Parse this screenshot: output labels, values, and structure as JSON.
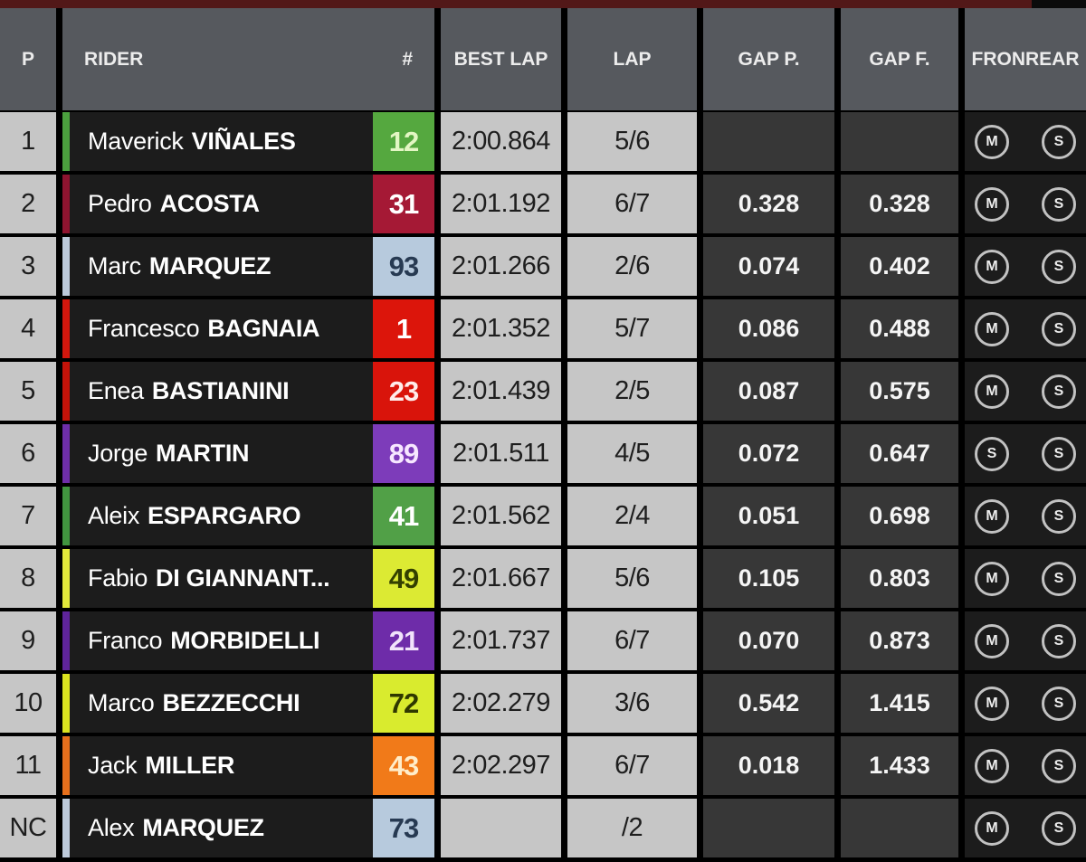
{
  "header": {
    "p": "P",
    "rider": "RIDER",
    "number": "#",
    "best_lap": "BEST LAP",
    "lap": "LAP",
    "gap_p": "GAP P.",
    "gap_f": "GAP F.",
    "tires": "FRONREAR"
  },
  "colors": {
    "top_bar": "#521818",
    "header_bg": "#56595e",
    "light_cell": "#c6c6c6",
    "dark_cell": "#373737",
    "black_cell": "#1c1c1c",
    "tire_outline": "#c2c2c2"
  },
  "rows": [
    {
      "pos": "1",
      "first": "Maverick",
      "last": "VIÑALES",
      "number": "12",
      "stripe": "#4ba03e",
      "number_bg": "#55a83f",
      "number_color": "#e3f6c3",
      "best_lap": "2:00.864",
      "lap": "5/6",
      "gap_p": "",
      "gap_f": "",
      "front_tire": "M",
      "rear_tire": "S"
    },
    {
      "pos": "2",
      "first": "Pedro",
      "last": "ACOSTA",
      "number": "31",
      "stripe": "#8e1430",
      "number_bg": "#a51935",
      "number_color": "#ffffff",
      "best_lap": "2:01.192",
      "lap": "6/7",
      "gap_p": "0.328",
      "gap_f": "0.328",
      "front_tire": "M",
      "rear_tire": "S"
    },
    {
      "pos": "3",
      "first": "Marc",
      "last": "MARQUEZ",
      "number": "93",
      "stripe": "#bcc9da",
      "number_bg": "#b7cadd",
      "number_color": "#273a52",
      "best_lap": "2:01.266",
      "lap": "2/6",
      "gap_p": "0.074",
      "gap_f": "0.402",
      "front_tire": "M",
      "rear_tire": "S"
    },
    {
      "pos": "4",
      "first": "Francesco",
      "last": "BAGNAIA",
      "number": "1",
      "stripe": "#d2170d",
      "number_bg": "#dc150b",
      "number_color": "#ffffff",
      "best_lap": "2:01.352",
      "lap": "5/7",
      "gap_p": "0.086",
      "gap_f": "0.488",
      "front_tire": "M",
      "rear_tire": "S"
    },
    {
      "pos": "5",
      "first": "Enea",
      "last": "BASTIANINI",
      "number": "23",
      "stripe": "#c41309",
      "number_bg": "#d9140b",
      "number_color": "#ffeceb",
      "best_lap": "2:01.439",
      "lap": "2/5",
      "gap_p": "0.087",
      "gap_f": "0.575",
      "front_tire": "M",
      "rear_tire": "S"
    },
    {
      "pos": "6",
      "first": "Jorge",
      "last": "MARTIN",
      "number": "89",
      "stripe": "#6e2ea8",
      "number_bg": "#7d3cba",
      "number_color": "#f7e7ff",
      "best_lap": "2:01.511",
      "lap": "4/5",
      "gap_p": "0.072",
      "gap_f": "0.647",
      "front_tire": "S",
      "rear_tire": "S"
    },
    {
      "pos": "7",
      "first": "Aleix",
      "last": "ESPARGARO",
      "number": "41",
      "stripe": "#41943f",
      "number_bg": "#51a047",
      "number_color": "#ffffff",
      "best_lap": "2:01.562",
      "lap": "2/4",
      "gap_p": "0.051",
      "gap_f": "0.698",
      "front_tire": "M",
      "rear_tire": "S"
    },
    {
      "pos": "8",
      "first": "Fabio",
      "last": "DI GIANNANT...",
      "number": "49",
      "stripe": "#e2e83b",
      "number_bg": "#dcea33",
      "number_color": "#333f00",
      "best_lap": "2:01.667",
      "lap": "5/6",
      "gap_p": "0.105",
      "gap_f": "0.803",
      "front_tire": "M",
      "rear_tire": "S"
    },
    {
      "pos": "9",
      "first": "Franco",
      "last": "MORBIDELLI",
      "number": "21",
      "stripe": "#5f249b",
      "number_bg": "#6e2ca9",
      "number_color": "#f1e3fb",
      "best_lap": "2:01.737",
      "lap": "6/7",
      "gap_p": "0.070",
      "gap_f": "0.873",
      "front_tire": "M",
      "rear_tire": "S"
    },
    {
      "pos": "10",
      "first": "Marco",
      "last": "BEZZECCHI",
      "number": "72",
      "stripe": "#dbe31f",
      "number_bg": "#d9eb2e",
      "number_color": "#2f3700",
      "best_lap": "2:02.279",
      "lap": "3/6",
      "gap_p": "0.542",
      "gap_f": "1.415",
      "front_tire": "M",
      "rear_tire": "S"
    },
    {
      "pos": "11",
      "first": "Jack",
      "last": "MILLER",
      "number": "43",
      "stripe": "#e56f1c",
      "number_bg": "#f17a19",
      "number_color": "#ffedca",
      "best_lap": "2:02.297",
      "lap": "6/7",
      "gap_p": "0.018",
      "gap_f": "1.433",
      "front_tire": "M",
      "rear_tire": "S"
    },
    {
      "pos": "NC",
      "first": "Alex",
      "last": "MARQUEZ",
      "number": "73",
      "stripe": "#bcc9da",
      "number_bg": "#b7cadd",
      "number_color": "#273a52",
      "best_lap": "",
      "lap": "/2",
      "gap_p": "",
      "gap_f": "",
      "front_tire": "M",
      "rear_tire": "S"
    }
  ]
}
